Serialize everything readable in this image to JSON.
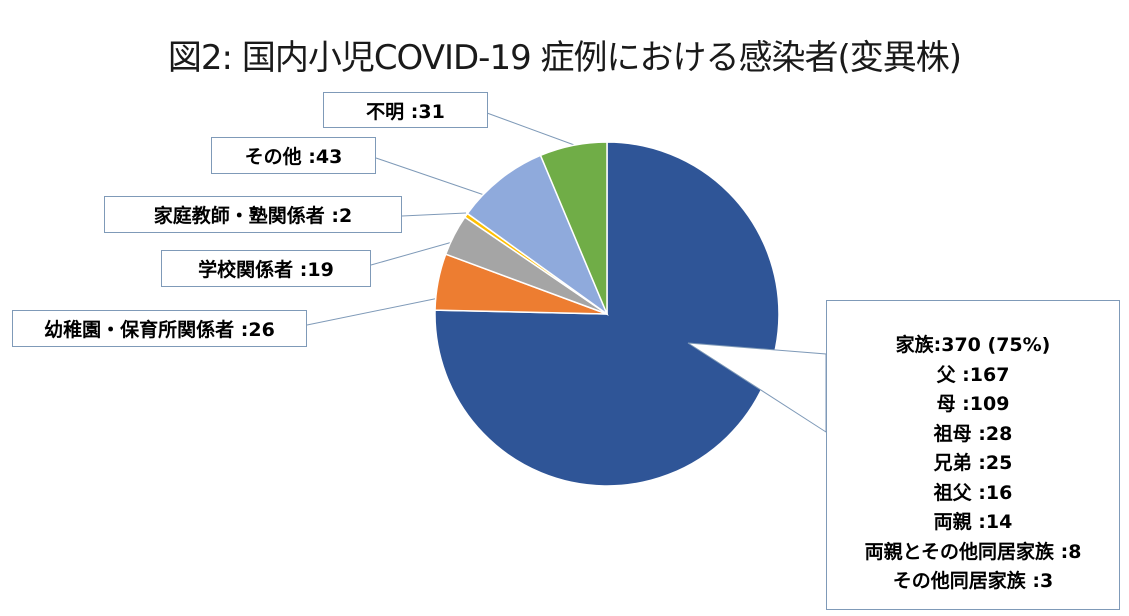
{
  "title": "図2: 国内小児COVID-19 症例における感染者(変異株)",
  "chart_data": {
    "type": "pie",
    "title": "図2: 国内小児COVID-19 症例における感染者(変異株)",
    "slices": [
      {
        "label": "家族",
        "value": 370,
        "color": "#2f5597"
      },
      {
        "label": "幼稚園・保育所関係者",
        "value": 26,
        "color": "#ed7d31"
      },
      {
        "label": "学校関係者",
        "value": 19,
        "color": "#a5a5a5"
      },
      {
        "label": "家庭教師・塾関係者",
        "value": 2,
        "color": "#ffc000"
      },
      {
        "label": "その他",
        "value": 43,
        "color": "#8faadc"
      },
      {
        "label": "不明",
        "value": 31,
        "color": "#70ad47"
      }
    ],
    "start": "12 o'clock",
    "direction": "clockwise"
  },
  "labels": {
    "unknown": "不明 :31",
    "other": "その他 :43",
    "tutor": "家庭教師・塾関係者 :2",
    "school": "学校関係者 :19",
    "nursery": "幼稚園・保育所関係者 :26",
    "family": [
      "家族:370 (75%)",
      "父 :167",
      "母 :109",
      "祖母 :28",
      "兄弟 :25",
      "祖父 :16",
      "両親 :14",
      "両親とその他同居家族 :8",
      "その他同居家族 :3"
    ]
  }
}
